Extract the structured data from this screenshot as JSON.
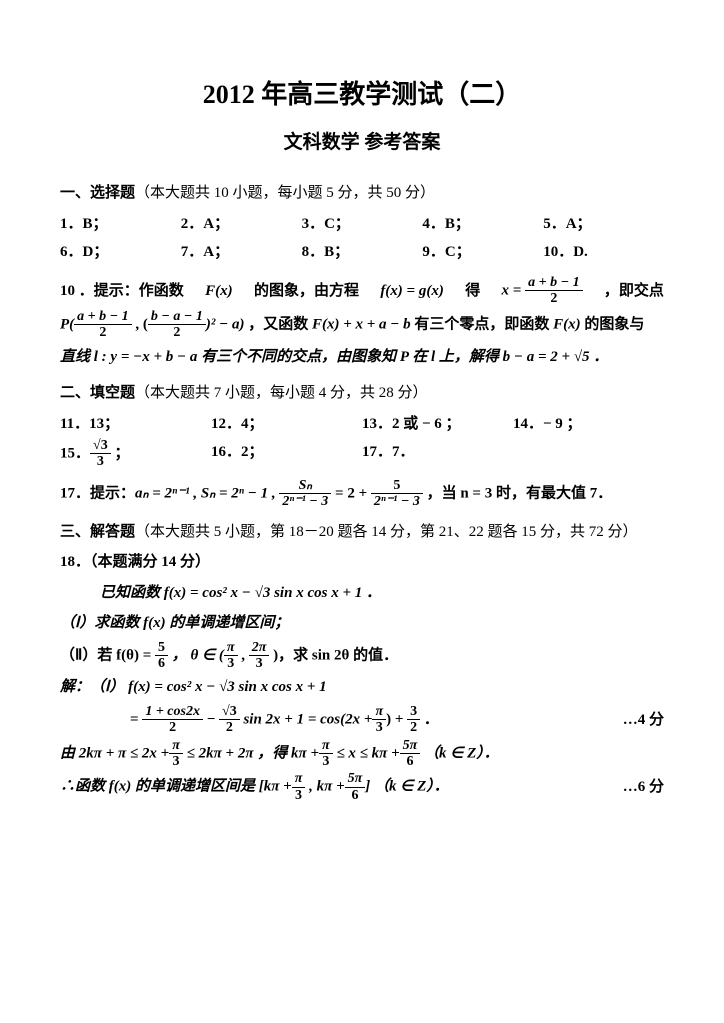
{
  "doc": {
    "title": "2012 年高三教学测试（二）",
    "subtitle": "文科数学  参考答案",
    "section1": {
      "head": "一、选择题",
      "desc": "（本大题共 10 小题，每小题 5 分，共 50 分）",
      "answers": [
        "1．B；",
        "2．A；",
        "3．C；",
        "4．B；",
        "5．A；",
        "6．D；",
        "7．A；",
        "8．B；",
        "9．C；",
        "10．D."
      ],
      "hint_lead": "10 ．提示：作函数 ",
      "hint_fx": "F(x)",
      "hint_a1": " 的图象，由方程 ",
      "hint_fxgx": "f(x) = g(x)",
      "hint_a2": " 得 ",
      "hint_xeq": "x =",
      "hint_frac1_num": "a + b − 1",
      "hint_frac1_den": "2",
      "hint_a3": " ，即交点",
      "hint_P": "P(",
      "hint_f2num": "a + b − 1",
      "hint_f2den": "2",
      "hint_comma": " , (",
      "hint_f3num": "b − a − 1",
      "hint_f3den": "2",
      "hint_sq": ")² − a)",
      "hint_a4": " ，又函数 ",
      "hint_fx2": "F(x) + x + a − b",
      "hint_a5": " 有三个零点，即函数 ",
      "hint_a5b": "F(x)",
      "hint_a5c": " 的图象与",
      "hint_line3a": "直线 l : y = −x + b − a 有三个不同的交点，由图象知 P 在 l 上，解得 b − a = 2 + √5 ．"
    },
    "section2": {
      "head": "二、填空题",
      "desc": "（本大题共 7 小题，每小题 4 分，共 28 分）",
      "answers": [
        "11．13；",
        "12．4；",
        "13．2 或 − 6 ；",
        "14．− 9 ；"
      ],
      "a15_lead": "15．",
      "a15_num": "√3",
      "a15_den": "3",
      "a15_tail": " ；",
      "a16": "16．2；",
      "a17": "17．7．",
      "hint17_lead": "17．提示：",
      "hint17_body": "aₙ = 2ⁿ⁻¹ , Sₙ = 2ⁿ − 1 ,",
      "hint17_fr1num": "Sₙ",
      "hint17_fr1den": "2ⁿ⁻¹ − 3",
      "hint17_eq": " = 2 +",
      "hint17_fr2num": "5",
      "hint17_fr2den": "2ⁿ⁻¹ − 3",
      "hint17_tail": " ，当 n = 3 时，有最大值 7．"
    },
    "section3": {
      "head": "三、解答题",
      "desc": "（本大题共 5 小题，第 18－20 题各 14 分，第 21、22 题各 15 分，共 72 分）",
      "q18_head": "18．（本题满分 14 分）",
      "q18_given": "已知函数 f(x) = cos² x − √3 sin x cos x + 1 ．",
      "q18_p1": "（Ⅰ）求函数 f(x) 的单调递增区间；",
      "q18_p2a": "（Ⅱ）若 f(θ) =",
      "q18_p2_f1num": "5",
      "q18_p2_f1den": "6",
      "q18_p2b": " ， θ ∈ (",
      "q18_p2_f2num": "π",
      "q18_p2_f2den": "3",
      "q18_p2c": " ,",
      "q18_p2_f3num": "2π",
      "q18_p2_f3den": "3",
      "q18_p2d": " )，求 sin 2θ 的值．",
      "sol_lead": "解：（Ⅰ） f(x) = cos² x − √3 sin x cos x + 1",
      "sol_l2a": "=",
      "sol_l2_f1num": "1 + cos2x",
      "sol_l2_f1den": "2",
      "sol_l2b": " −",
      "sol_l2_f2num": "√3",
      "sol_l2_f2den": "2",
      "sol_l2c": " sin 2x + 1  = cos(2x +",
      "sol_l2_f3num": "π",
      "sol_l2_f3den": "3",
      "sol_l2d": ") +",
      "sol_l2_f4num": "3",
      "sol_l2_f4den": "2",
      "sol_l2e": " ．",
      "mark4": "…4 分",
      "sol_l3a": "由 2kπ + π ≤ 2x +",
      "sol_l3_f1num": "π",
      "sol_l3_f1den": "3",
      "sol_l3b": " ≤ 2kπ + 2π ，得 kπ +",
      "sol_l3_f2num": "π",
      "sol_l3_f2den": "3",
      "sol_l3c": " ≤ x ≤ kπ +",
      "sol_l3_f3num": "5π",
      "sol_l3_f3den": "6",
      "sol_l3d": " （k ∈ Z）．",
      "sol_l4a": "∴函数 f(x) 的单调递增区间是 [kπ +",
      "sol_l4_f1num": "π",
      "sol_l4_f1den": "3",
      "sol_l4b": " , kπ +",
      "sol_l4_f2num": "5π",
      "sol_l4_f2den": "6",
      "sol_l4c": "] （k ∈ Z）．",
      "mark6": "…6 分"
    }
  }
}
